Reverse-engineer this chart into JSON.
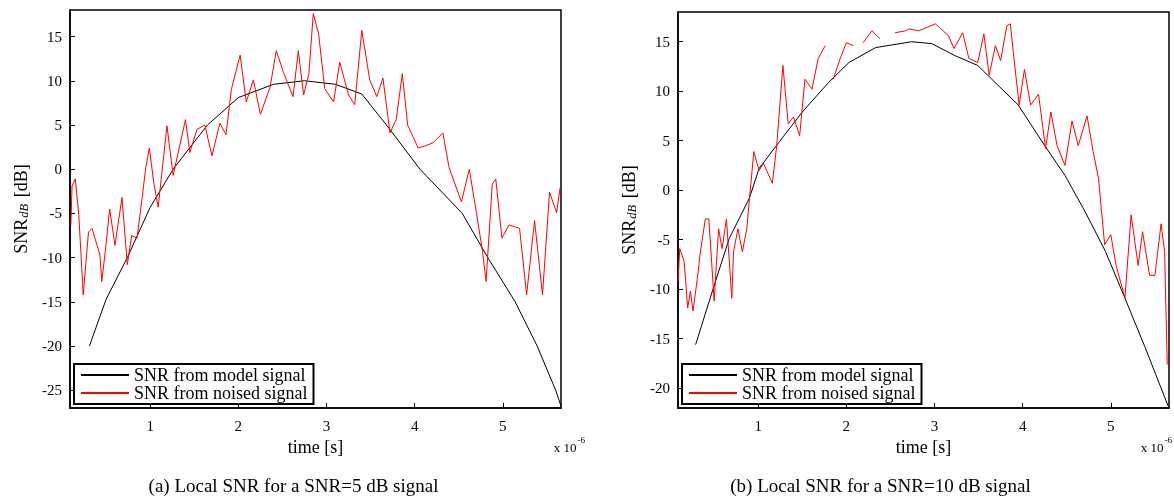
{
  "chart_data": [
    {
      "type": "line",
      "title": "(a) Local SNR for a SNR=5 dB signal",
      "xlabel": "time [s]",
      "ylabel": "SNR$_{dB}$ [dB]",
      "annotations": [
        "x 10$^{-6}$"
      ],
      "xlim": [
        0.09,
        5.66
      ],
      "xticks": [
        1,
        2,
        3,
        4,
        5
      ],
      "ylim": [
        -27,
        18
      ],
      "yticks": [
        -25,
        -20,
        -15,
        -10,
        -5,
        0,
        5,
        10,
        15
      ],
      "grid": false,
      "legend": "bottom left",
      "series": [
        {
          "name": "SNR from model signal",
          "color": "#000000",
          "x": [
            0.31,
            0.5,
            0.74,
            1.0,
            1.26,
            1.65,
            2.0,
            2.4,
            2.75,
            3.1,
            3.4,
            3.68,
            4.06,
            4.54,
            4.83,
            5.14,
            5.39,
            5.6,
            5.66
          ],
          "values": [
            -20,
            -14.7,
            -10,
            -4.3,
            0,
            5,
            8.1,
            9.6,
            10,
            9.6,
            8.5,
            5,
            0,
            -5,
            -10,
            -15,
            -20,
            -25,
            -26.8
          ]
        },
        {
          "name": "SNR from noised signal",
          "color": "#ff0000",
          "x": [
            0.1,
            0.113,
            0.15,
            0.19,
            0.24,
            0.3,
            0.34,
            0.43,
            0.45,
            0.49,
            0.54,
            0.6,
            0.68,
            0.74,
            0.79,
            0.85,
            0.9,
            0.95,
            0.99,
            1.04,
            1.09,
            1.19,
            1.26,
            1.4,
            1.45,
            1.53,
            1.62,
            1.7,
            1.79,
            1.86,
            1.92,
            2.02,
            2.09,
            2.17,
            2.25,
            2.36,
            2.43,
            2.51,
            2.62,
            2.68,
            2.74,
            2.8,
            2.85,
            2.91,
            2.98,
            3.08,
            3.15,
            3.25,
            3.32,
            3.4,
            3.49,
            3.57,
            3.64,
            3.72,
            3.79,
            3.86,
            3.92,
            4.04,
            4.11,
            4.21,
            4.32,
            4.39,
            4.53,
            4.62,
            4.7,
            4.77,
            4.81,
            4.88,
            4.92,
            4.99,
            5.07,
            5.19,
            5.27,
            5.36,
            5.45,
            5.53,
            5.61,
            5.65
          ],
          "values": [
            -6.3,
            -1.9,
            -1.1,
            -5.2,
            -14.2,
            -7.1,
            -6.7,
            -9.7,
            -12.7,
            -9.3,
            -4.5,
            -8.6,
            -3.2,
            -10.8,
            -7.5,
            -7.8,
            -3.9,
            0.2,
            2.4,
            -1.5,
            -4.3,
            4.9,
            -0.7,
            5.6,
            1.9,
            4.5,
            5,
            1.5,
            5.2,
            3.9,
            9,
            12.9,
            7.6,
            10.1,
            6.2,
            9.3,
            13.4,
            11,
            8.2,
            13.4,
            8.4,
            10.8,
            17.6,
            15.3,
            9.1,
            7.6,
            12.1,
            8.4,
            7.3,
            15.7,
            10.1,
            8.2,
            10.3,
            4.1,
            5.6,
            10.8,
            5,
            2.4,
            2.6,
            3,
            4.1,
            0.2,
            -3.7,
            0,
            -4.9,
            -9.3,
            -12.7,
            -1.7,
            -1.1,
            -7.8,
            -6.3,
            -6.7,
            -14.2,
            -5.8,
            -14.2,
            -2.6,
            -4.9,
            -2.1
          ]
        }
      ]
    },
    {
      "type": "line",
      "title": "(b) Local SNR for a SNR=10 dB signal",
      "xlabel": "time [s]",
      "ylabel": "SNR$_{dB}$ [dB]",
      "annotations": [
        "x 10$^{-6}$"
      ],
      "xlim": [
        0.09,
        5.66
      ],
      "xticks": [
        1,
        2,
        3,
        4,
        5
      ],
      "ylim": [
        -22,
        18
      ],
      "yticks": [
        -20,
        -15,
        -10,
        -5,
        0,
        5,
        10,
        15
      ],
      "grid": false,
      "legend": "bottom left",
      "series": [
        {
          "name": "SNR from model signal",
          "color": "#000000",
          "x": [
            0.29,
            0.48,
            0.67,
            0.9,
            1.01,
            1.24,
            1.5,
            1.8,
            2.03,
            2.33,
            2.74,
            2.97,
            3.23,
            3.49,
            3.72,
            3.95,
            4.25,
            4.48,
            4.71,
            4.94,
            5.16,
            5.39,
            5.65
          ],
          "values": [
            -15.6,
            -10.2,
            -4.9,
            -0.8,
            2.2,
            4.9,
            7.9,
            10.9,
            12.9,
            14.4,
            15,
            14.8,
            13.6,
            12.6,
            10.6,
            8.6,
            4.5,
            1.5,
            -2.2,
            -6.2,
            -10.9,
            -15.9,
            -21.8
          ]
        },
        {
          "name": "SNR from noised signal",
          "color": "#ff0000",
          "x": [
            0.09,
            0.11,
            0.16,
            0.2,
            0.23,
            0.26,
            0.31,
            0.34,
            0.4,
            0.44,
            0.5,
            0.55,
            0.59,
            0.64,
            0.7,
            0.72,
            0.77,
            0.82,
            0.87,
            0.95,
            1.01,
            1.06,
            1.16,
            1.21,
            1.28,
            1.34,
            1.4,
            1.47,
            1.53,
            1.61,
            1.68,
            1.76,
            1.8,
            1.85,
            1.93,
            2.0,
            2.08,
            2.12,
            2.19,
            2.29,
            2.38,
            2.48,
            2.55,
            2.67,
            2.71,
            2.82,
            3.01,
            3.16,
            3.22,
            3.32,
            3.39,
            3.49,
            3.56,
            3.62,
            3.69,
            3.75,
            3.82,
            3.86,
            3.9,
            3.96,
            4.02,
            4.09,
            4.18,
            4.26,
            4.32,
            4.39,
            4.48,
            4.56,
            4.63,
            4.73,
            4.8,
            4.86,
            4.93,
            5.0,
            5.06,
            5.16,
            5.23,
            5.31,
            5.36,
            5.44,
            5.5,
            5.57,
            5.61,
            5.64
          ],
          "values": [
            -9.2,
            -5.9,
            -7.2,
            -11.9,
            -10.2,
            -12.2,
            -8.9,
            -6.5,
            -2.9,
            -2.9,
            -11.2,
            -3.9,
            -5.9,
            -2.9,
            -10.9,
            -6.2,
            -3.9,
            -6.2,
            -3.9,
            3.9,
            2,
            2.7,
            0.7,
            4.5,
            12.6,
            6.7,
            7.4,
            5.5,
            11.2,
            10.2,
            13.3,
            14.6,
            null,
            11.2,
            13.3,
            14.9,
            14.6,
            null,
            14.9,
            16.1,
            15.3,
            null,
            15.9,
            16.1,
            16.3,
            16.1,
            16.8,
            15.6,
            14.3,
            15.9,
            13.3,
            12.9,
            15.8,
            11.6,
            14.6,
            13.1,
            16.6,
            16.8,
            13.4,
            8.6,
            12.2,
            8.6,
            9.7,
            4.2,
            7.9,
            4.5,
            2.5,
            7,
            4.5,
            7.5,
            3.9,
            1.2,
            -5.5,
            -4.5,
            -7.6,
            -10.9,
            -2.5,
            -7.6,
            -4.2,
            -8.6,
            -8.6,
            -3.4,
            -6.2,
            -17.6
          ]
        }
      ]
    }
  ]
}
